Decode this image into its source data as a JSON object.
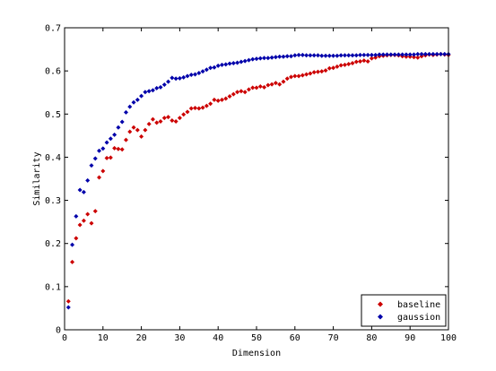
{
  "chart_data": {
    "type": "scatter",
    "title": "",
    "xlabel": "Dimension",
    "ylabel": "Similarity",
    "xlim": [
      0,
      100
    ],
    "ylim": [
      0,
      0.7
    ],
    "xticks": [
      0,
      10,
      20,
      30,
      40,
      50,
      60,
      70,
      80,
      90,
      100
    ],
    "yticks": [
      0,
      0.1,
      0.2,
      0.3,
      0.4,
      0.5,
      0.6,
      0.7
    ],
    "grid": false,
    "legend": {
      "location": "bottom-right"
    },
    "series": [
      {
        "name": "baseline",
        "color": "#cc0000",
        "marker": "diamond",
        "x": [
          1,
          2,
          3,
          4,
          5,
          6,
          7,
          8,
          9,
          10,
          11,
          12,
          13,
          14,
          15,
          16,
          17,
          18,
          19,
          20,
          21,
          22,
          23,
          24,
          25,
          26,
          27,
          28,
          29,
          30,
          31,
          32,
          33,
          34,
          35,
          36,
          37,
          38,
          39,
          40,
          41,
          42,
          43,
          44,
          45,
          46,
          47,
          48,
          49,
          50,
          51,
          52,
          53,
          54,
          55,
          56,
          57,
          58,
          59,
          60,
          61,
          62,
          63,
          64,
          65,
          66,
          67,
          68,
          69,
          70,
          71,
          72,
          73,
          74,
          75,
          76,
          77,
          78,
          79,
          80,
          81,
          82,
          83,
          84,
          85,
          86,
          87,
          88,
          89,
          90,
          91,
          92,
          93,
          94,
          95,
          96,
          97,
          98,
          99,
          100
        ],
        "y": [
          0.066,
          0.157,
          0.212,
          0.243,
          0.253,
          0.268,
          0.247,
          0.275,
          0.353,
          0.368,
          0.398,
          0.399,
          0.421,
          0.419,
          0.418,
          0.44,
          0.459,
          0.469,
          0.463,
          0.448,
          0.463,
          0.477,
          0.488,
          0.48,
          0.483,
          0.491,
          0.493,
          0.485,
          0.483,
          0.491,
          0.499,
          0.505,
          0.513,
          0.514,
          0.513,
          0.515,
          0.519,
          0.524,
          0.533,
          0.531,
          0.533,
          0.536,
          0.541,
          0.546,
          0.551,
          0.553,
          0.551,
          0.557,
          0.561,
          0.561,
          0.564,
          0.562,
          0.567,
          0.569,
          0.572,
          0.569,
          0.575,
          0.582,
          0.586,
          0.588,
          0.588,
          0.59,
          0.592,
          0.594,
          0.597,
          0.598,
          0.599,
          0.601,
          0.606,
          0.607,
          0.61,
          0.613,
          0.614,
          0.616,
          0.618,
          0.621,
          0.622,
          0.624,
          0.622,
          0.629,
          0.631,
          0.634,
          0.635,
          0.636,
          0.637,
          0.637,
          0.636,
          0.634,
          0.633,
          0.633,
          0.632,
          0.631,
          0.634,
          0.636,
          0.638,
          0.637,
          0.638,
          0.639,
          0.638,
          0.637
        ]
      },
      {
        "name": "gaussion",
        "color": "#0000aa",
        "marker": "diamond",
        "x": [
          1,
          2,
          3,
          4,
          5,
          6,
          7,
          8,
          9,
          10,
          11,
          12,
          13,
          14,
          15,
          16,
          17,
          18,
          19,
          20,
          21,
          22,
          23,
          24,
          25,
          26,
          27,
          28,
          29,
          30,
          31,
          32,
          33,
          34,
          35,
          36,
          37,
          38,
          39,
          40,
          41,
          42,
          43,
          44,
          45,
          46,
          47,
          48,
          49,
          50,
          51,
          52,
          53,
          54,
          55,
          56,
          57,
          58,
          59,
          60,
          61,
          62,
          63,
          64,
          65,
          66,
          67,
          68,
          69,
          70,
          71,
          72,
          73,
          74,
          75,
          76,
          77,
          78,
          79,
          80,
          81,
          82,
          83,
          84,
          85,
          86,
          87,
          88,
          89,
          90,
          91,
          92,
          93,
          94,
          95,
          96,
          97,
          98,
          99,
          100
        ],
        "y": [
          0.052,
          0.197,
          0.263,
          0.324,
          0.319,
          0.346,
          0.381,
          0.397,
          0.415,
          0.42,
          0.434,
          0.443,
          0.452,
          0.469,
          0.482,
          0.504,
          0.517,
          0.527,
          0.533,
          0.542,
          0.551,
          0.553,
          0.555,
          0.56,
          0.562,
          0.568,
          0.575,
          0.584,
          0.582,
          0.583,
          0.585,
          0.588,
          0.591,
          0.592,
          0.595,
          0.599,
          0.603,
          0.607,
          0.608,
          0.612,
          0.614,
          0.615,
          0.617,
          0.618,
          0.619,
          0.621,
          0.623,
          0.625,
          0.627,
          0.628,
          0.629,
          0.63,
          0.63,
          0.631,
          0.632,
          0.633,
          0.633,
          0.634,
          0.634,
          0.636,
          0.637,
          0.637,
          0.636,
          0.636,
          0.636,
          0.636,
          0.635,
          0.635,
          0.635,
          0.635,
          0.635,
          0.636,
          0.636,
          0.636,
          0.636,
          0.636,
          0.637,
          0.637,
          0.637,
          0.637,
          0.637,
          0.638,
          0.638,
          0.638,
          0.638,
          0.638,
          0.638,
          0.638,
          0.638,
          0.638,
          0.638,
          0.639,
          0.639,
          0.639,
          0.639,
          0.639,
          0.639,
          0.639,
          0.639,
          0.639
        ]
      }
    ]
  }
}
